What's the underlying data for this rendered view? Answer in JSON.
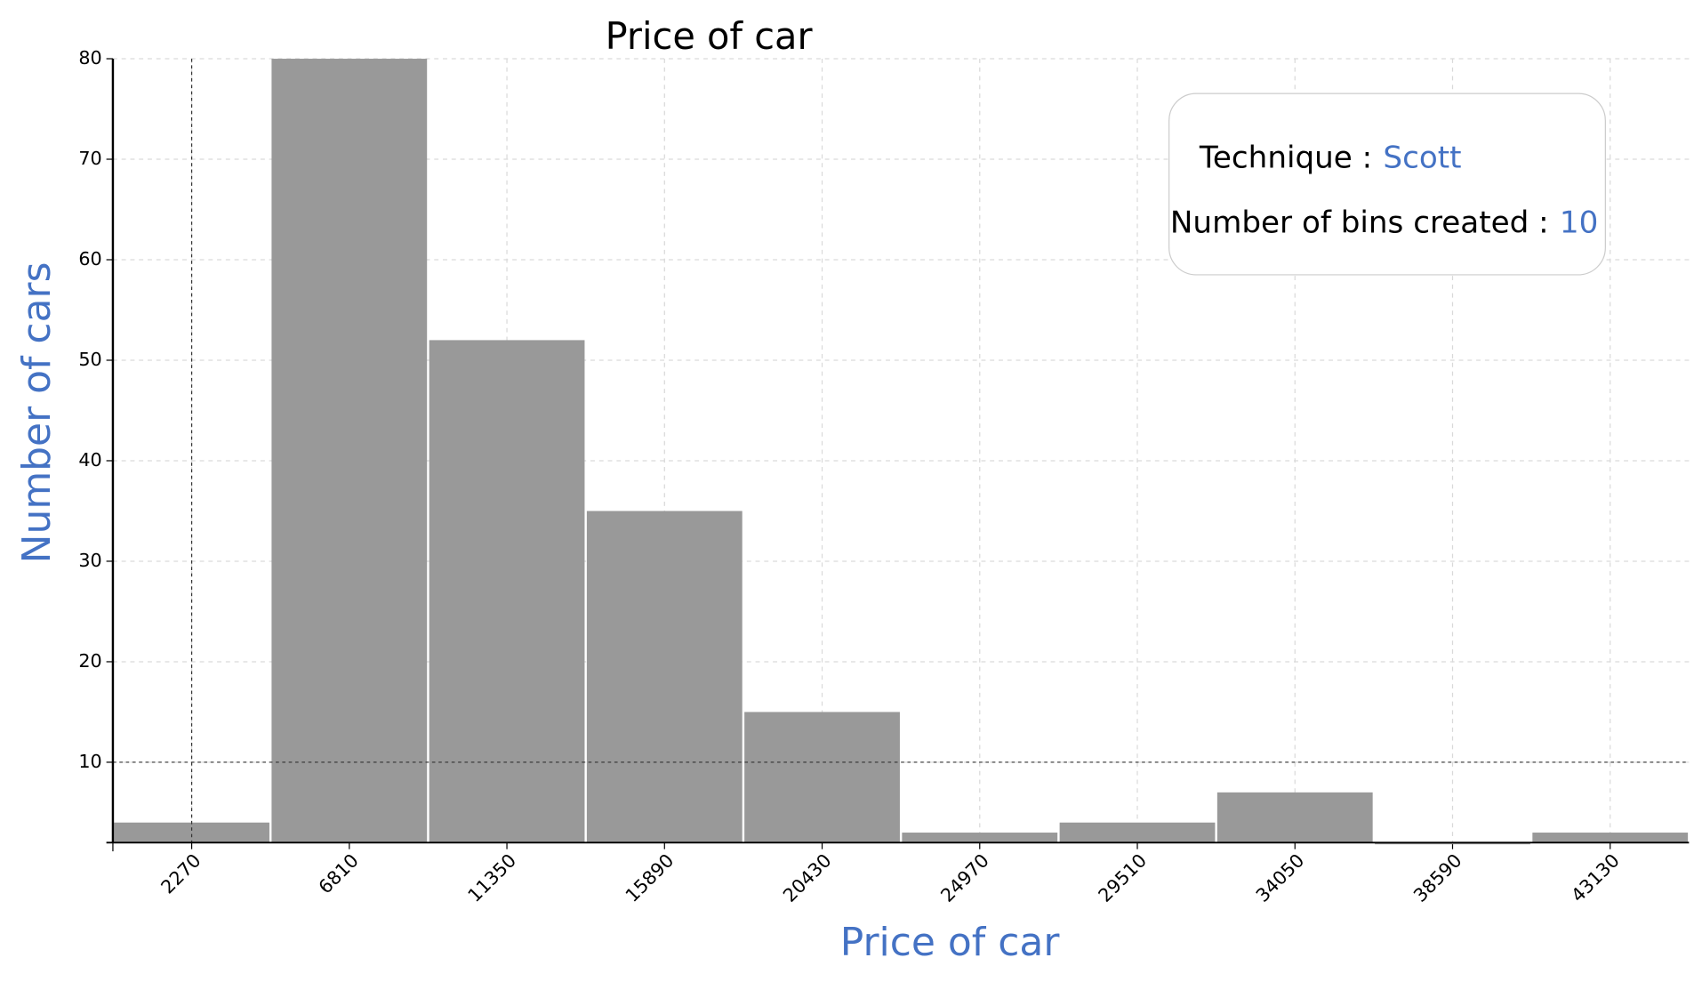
{
  "chart_data": {
    "type": "histogram",
    "title": "Price of car",
    "x_label": "Price of car",
    "y_label": "Number of cars",
    "bins": [
      0,
      4540,
      9080,
      13620,
      18160,
      22700,
      27240,
      31780,
      36320,
      40860,
      45400
    ],
    "values": [
      4,
      80,
      52,
      35,
      15,
      3,
      4,
      7,
      2,
      3
    ],
    "color": "#999999",
    "xlim": [
      0,
      45400
    ],
    "ylim": [
      2,
      80
    ],
    "xticks": [
      2270,
      6810,
      11350,
      15890,
      20430,
      24970,
      29510,
      34050,
      38590,
      43130
    ],
    "yticks": [
      10,
      20,
      30,
      40,
      50,
      60,
      70,
      80
    ],
    "grid": true,
    "crosshair": {
      "x": 2270,
      "y": 10
    },
    "info_box": {
      "technique_label": "Technique :",
      "technique": "Scott",
      "bins_label": "Number of bins created :",
      "bins": 10
    }
  }
}
